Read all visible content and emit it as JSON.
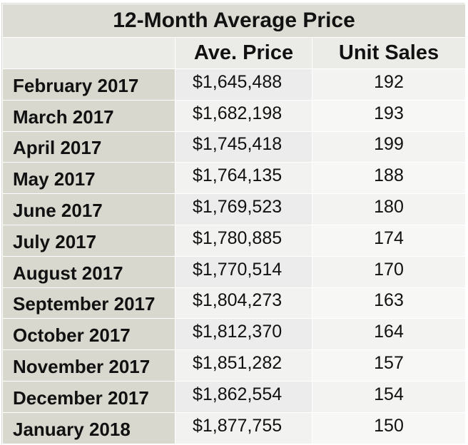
{
  "title": "12-Month Average Price",
  "headers": {
    "month": "",
    "price": "Ave. Price",
    "units": "Unit Sales"
  },
  "rows": [
    {
      "month": "February 2017",
      "price": "$1,645,488",
      "units": "192"
    },
    {
      "month": "March 2017",
      "price": "$1,682,198",
      "units": "193"
    },
    {
      "month": "April 2017",
      "price": "$1,745,418",
      "units": "199"
    },
    {
      "month": "May 2017",
      "price": "$1,764,135",
      "units": "188"
    },
    {
      "month": "June 2017",
      "price": "$1,769,523",
      "units": "180"
    },
    {
      "month": "July 2017",
      "price": "$1,780,885",
      "units": "174"
    },
    {
      "month": "August 2017",
      "price": "$1,770,514",
      "units": "170"
    },
    {
      "month": "September 2017",
      "price": "$1,804,273",
      "units": "163"
    },
    {
      "month": "October 2017",
      "price": "$1,812,370",
      "units": "164"
    },
    {
      "month": "November 2017",
      "price": "$1,851,282",
      "units": "157"
    },
    {
      "month": "December 2017",
      "price": "$1,862,554",
      "units": "154"
    },
    {
      "month": "January 2018",
      "price": "$1,877,755",
      "units": "150"
    }
  ]
}
